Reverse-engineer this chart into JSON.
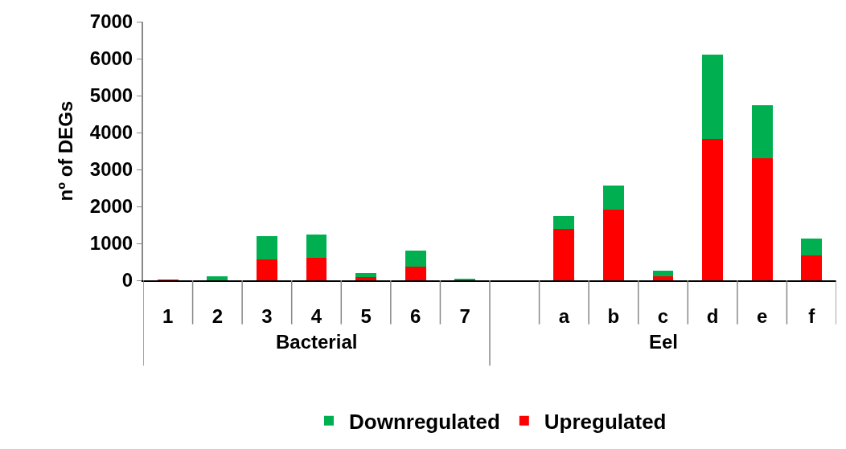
{
  "chart_data": {
    "type": "bar",
    "stacked": true,
    "ylabel": "nº of DEGs",
    "categories": [
      "1",
      "2",
      "3",
      "4",
      "5",
      "6",
      "7",
      null,
      "a",
      "b",
      "c",
      "d",
      "e",
      "f"
    ],
    "series": [
      {
        "name": "Upregulated",
        "color": "#ff0000",
        "values": [
          20,
          0,
          560,
          600,
          80,
          360,
          0,
          null,
          1400,
          1920,
          100,
          3830,
          3310,
          670
        ]
      },
      {
        "name": "Downregulated",
        "color": "#00b050",
        "values": [
          0,
          110,
          640,
          640,
          110,
          450,
          40,
          null,
          330,
          640,
          160,
          2280,
          1420,
          450
        ]
      }
    ],
    "ylim": [
      0,
      7000
    ],
    "yticks": [
      0,
      1000,
      2000,
      3000,
      4000,
      5000,
      6000,
      7000
    ],
    "grid": false,
    "legend": "bottom",
    "annotations": [
      "Bacterial",
      "Eel"
    ]
  }
}
